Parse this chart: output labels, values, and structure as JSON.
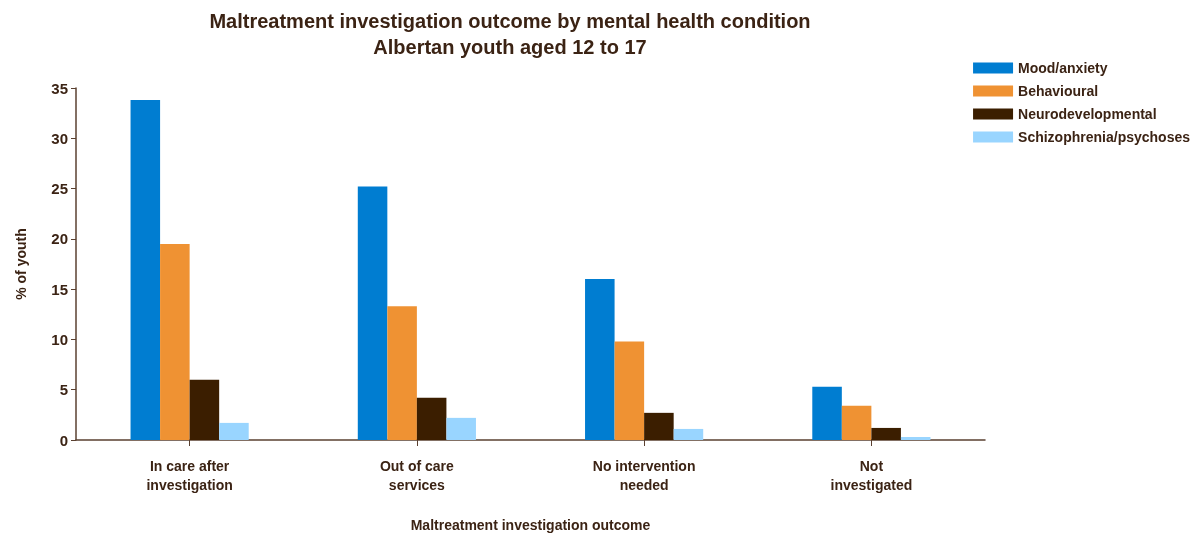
{
  "chart_data": {
    "type": "bar",
    "title": "Maltreatment investigation outcome by mental health condition",
    "subtitle": "Albertan youth aged 12 to 17",
    "xlabel": "Maltreatment investigation outcome",
    "ylabel": "% of youth",
    "categories": [
      "In care after\ninvestigation",
      "Out of care\nservices",
      "No intervention\nneeded",
      "Not\ninvestigated"
    ],
    "series": [
      {
        "name": "Mood/anxiety",
        "color": "#007dd1",
        "values": [
          33.8,
          25.2,
          16.0,
          5.3
        ]
      },
      {
        "name": "Behavioural",
        "color": "#ef9233",
        "values": [
          19.5,
          13.3,
          9.8,
          3.4
        ]
      },
      {
        "name": "Neurodevelopmental",
        "color": "#3b1e00",
        "values": [
          6.0,
          4.2,
          2.7,
          1.2
        ]
      },
      {
        "name": "Schizophrenia/psychoses",
        "color": "#99d5ff",
        "values": [
          1.7,
          2.2,
          1.1,
          0.3
        ]
      }
    ],
    "ylim": [
      0,
      35
    ],
    "yticks": [
      0,
      5,
      10,
      15,
      20,
      25,
      30,
      35
    ],
    "grid": false,
    "legend": "top right"
  }
}
